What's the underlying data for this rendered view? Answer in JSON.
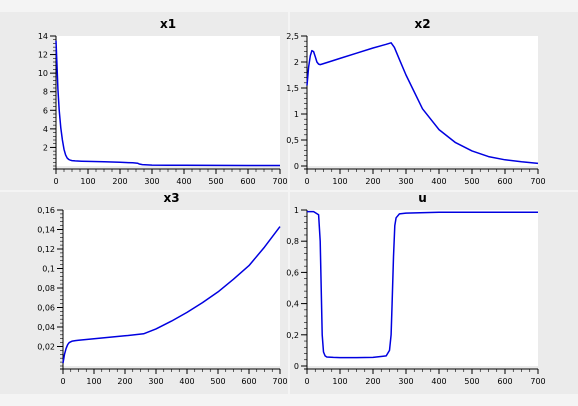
{
  "figure": {
    "background": "#f4f4f4",
    "plot_background": "#ffffff",
    "line_color": "#0000e0"
  },
  "chart_data": [
    {
      "type": "line",
      "title": "x1",
      "xlabel": "",
      "ylabel": "",
      "xlim": [
        0,
        700
      ],
      "ylim": [
        0,
        14
      ],
      "xticks": [
        0,
        100,
        200,
        300,
        400,
        500,
        600,
        700
      ],
      "xtick_labels": [
        "0",
        "100",
        "200",
        "300",
        "400",
        "500",
        "600",
        "700"
      ],
      "yticks": [
        2,
        4,
        6,
        8,
        10,
        12,
        14
      ],
      "ytick_labels": [
        "2",
        "4",
        "6",
        "8",
        "10",
        "12",
        "14"
      ],
      "grid": false,
      "series": [
        {
          "x": [
            0,
            3,
            6,
            10,
            15,
            20,
            25,
            30,
            35,
            40,
            45,
            50,
            60,
            80,
            100,
            150,
            200,
            240,
            255,
            260,
            270,
            300,
            350,
            400,
            500,
            600,
            700
          ],
          "y": [
            13.5,
            10.8,
            8.3,
            6.0,
            4.1,
            2.8,
            1.8,
            1.2,
            0.85,
            0.7,
            0.62,
            0.58,
            0.55,
            0.52,
            0.5,
            0.45,
            0.4,
            0.35,
            0.3,
            0.22,
            0.15,
            0.1,
            0.08,
            0.07,
            0.06,
            0.05,
            0.05
          ]
        }
      ]
    },
    {
      "type": "line",
      "title": "x2",
      "xlabel": "",
      "ylabel": "",
      "xlim": [
        0,
        700
      ],
      "ylim": [
        0,
        2.5
      ],
      "xticks": [
        0,
        100,
        200,
        300,
        400,
        500,
        600,
        700
      ],
      "xtick_labels": [
        "0",
        "100",
        "200",
        "300",
        "400",
        "500",
        "600",
        "700"
      ],
      "yticks": [
        0,
        0.5,
        1,
        1.5,
        2,
        2.5
      ],
      "ytick_labels": [
        "0",
        "0,5",
        "1",
        "1,5",
        "2",
        "2,5"
      ],
      "grid": false,
      "series": [
        {
          "x": [
            0,
            5,
            10,
            15,
            20,
            25,
            30,
            35,
            40,
            45,
            50,
            75,
            100,
            150,
            200,
            240,
            255,
            265,
            280,
            300,
            350,
            400,
            450,
            500,
            550,
            600,
            650,
            700
          ],
          "y": [
            1.55,
            1.9,
            2.12,
            2.22,
            2.2,
            2.1,
            2.0,
            1.96,
            1.95,
            1.96,
            1.97,
            2.02,
            2.07,
            2.17,
            2.27,
            2.34,
            2.37,
            2.28,
            2.05,
            1.75,
            1.1,
            0.7,
            0.45,
            0.29,
            0.18,
            0.12,
            0.08,
            0.05
          ]
        }
      ]
    },
    {
      "type": "line",
      "title": "x3",
      "xlabel": "",
      "ylabel": "",
      "xlim": [
        0,
        700
      ],
      "ylim": [
        0,
        0.16
      ],
      "xticks": [
        0,
        100,
        200,
        300,
        400,
        500,
        600,
        700
      ],
      "xtick_labels": [
        "0",
        "100",
        "200",
        "300",
        "400",
        "500",
        "600",
        "700"
      ],
      "yticks": [
        0.02,
        0.04,
        0.06,
        0.08,
        0.1,
        0.12,
        0.14,
        0.16
      ],
      "ytick_labels": [
        "0,02",
        "0,04",
        "0,06",
        "0,08",
        "0,1",
        "0,12",
        "0,14",
        "0,16"
      ],
      "grid": false,
      "series": [
        {
          "x": [
            0,
            5,
            10,
            15,
            20,
            30,
            40,
            50,
            100,
            150,
            200,
            260,
            300,
            350,
            400,
            450,
            500,
            550,
            600,
            650,
            700
          ],
          "y": [
            0.003,
            0.012,
            0.018,
            0.022,
            0.024,
            0.0255,
            0.026,
            0.0265,
            0.028,
            0.0295,
            0.031,
            0.033,
            0.038,
            0.046,
            0.055,
            0.065,
            0.076,
            0.089,
            0.103,
            0.122,
            0.143
          ]
        }
      ]
    },
    {
      "type": "line",
      "title": "u",
      "xlabel": "",
      "ylabel": "",
      "xlim": [
        0,
        700
      ],
      "ylim": [
        0,
        1
      ],
      "xticks": [
        0,
        100,
        200,
        300,
        400,
        500,
        600,
        700
      ],
      "xtick_labels": [
        "0",
        "100",
        "200",
        "300",
        "400",
        "500",
        "600",
        "700"
      ],
      "yticks": [
        0,
        0.2,
        0.4,
        0.6,
        0.8,
        1
      ],
      "ytick_labels": [
        "0",
        "0,2",
        "0,4",
        "0,6",
        "0,8",
        "1"
      ],
      "grid": false,
      "series": [
        {
          "x": [
            0,
            20,
            35,
            40,
            43,
            46,
            50,
            55,
            60,
            80,
            100,
            150,
            200,
            240,
            250,
            255,
            258,
            262,
            266,
            270,
            280,
            300,
            400,
            500,
            600,
            700
          ],
          "y": [
            0.99,
            0.99,
            0.97,
            0.8,
            0.5,
            0.2,
            0.09,
            0.065,
            0.058,
            0.055,
            0.054,
            0.054,
            0.055,
            0.065,
            0.1,
            0.2,
            0.4,
            0.7,
            0.9,
            0.95,
            0.975,
            0.98,
            0.985,
            0.985,
            0.985,
            0.985
          ]
        }
      ]
    }
  ]
}
